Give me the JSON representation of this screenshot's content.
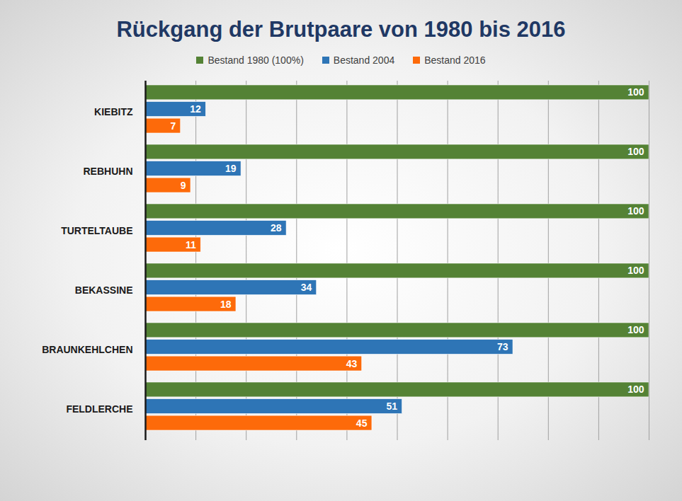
{
  "chart_data": {
    "type": "bar",
    "title": "Rückgang der Brutpaare von 1980 bis 2016",
    "orientation": "horizontal",
    "categories": [
      "KIEBITZ",
      "REBHUHN",
      "TURTELTAUBE",
      "BEKASSINE",
      "BRAUNKEHLCHEN",
      "FELDLERCHE"
    ],
    "series": [
      {
        "name": "Bestand 1980 (100%)",
        "color": "#548235",
        "values": [
          100,
          100,
          100,
          100,
          100,
          100
        ]
      },
      {
        "name": "Bestand 2004",
        "color": "#2e75b6",
        "values": [
          12,
          19,
          28,
          34,
          73,
          51
        ]
      },
      {
        "name": "Bestand 2016",
        "color": "#fd6a0a",
        "values": [
          7,
          9,
          11,
          18,
          43,
          45
        ]
      }
    ],
    "xlim": [
      0,
      100
    ],
    "xticks": [
      0,
      10,
      20,
      30,
      40,
      50,
      60,
      70,
      80,
      90,
      100
    ],
    "grid": true,
    "legend": "top",
    "data_labels": true,
    "tick_labels": "y"
  }
}
